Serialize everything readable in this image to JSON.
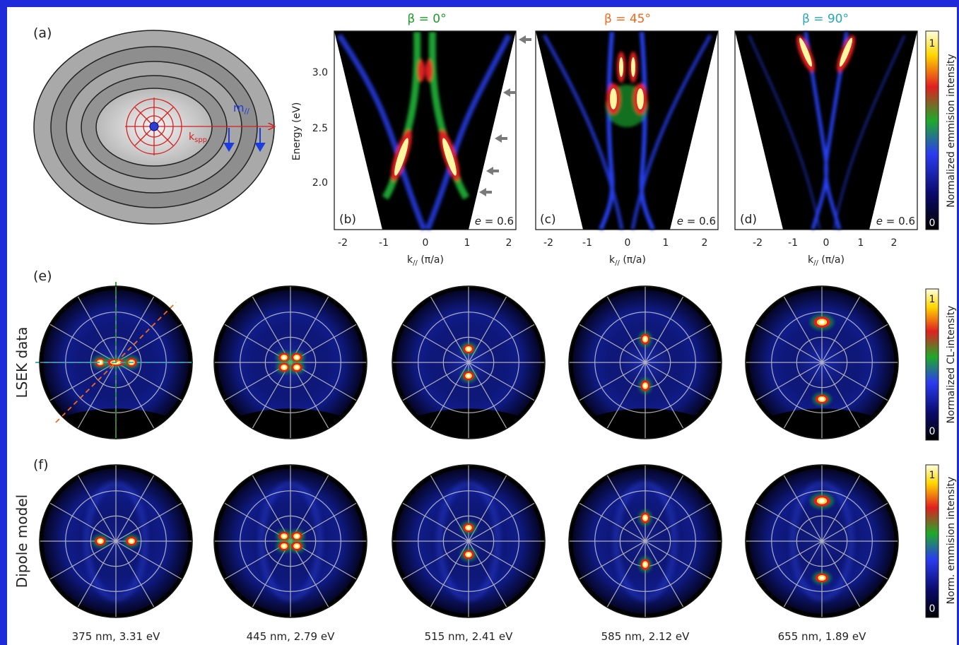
{
  "panel_a": {
    "label": "(a)",
    "k_label": "k",
    "k_sub": "spp",
    "m_label": "m",
    "m_sub": "//"
  },
  "dispersion": {
    "panels": [
      {
        "label": "(b)",
        "beta_title": "β = 0°",
        "beta_color": "#1e9a2a",
        "e_label": "e",
        "e_value": " = 0.6"
      },
      {
        "label": "(c)",
        "beta_title": "β = 45°",
        "beta_color": "#f06a1c",
        "e_label": "e",
        "e_value": " = 0.6"
      },
      {
        "label": "(d)",
        "beta_title": "β = 90°",
        "beta_color": "#2aa6b6",
        "e_label": "e",
        "e_value": " = 0.6"
      }
    ],
    "y_label": "Energy (eV)",
    "y_ticks": [
      "3.0",
      "2.5",
      "2.0"
    ],
    "x_ticks": [
      "-2",
      "-1",
      "0",
      "1",
      "2"
    ],
    "x_label_main": "k",
    "x_label_sub": "//",
    "x_label_unit": " (π/a)",
    "colorbar": {
      "label": "Normalized emmision intensity",
      "max": "1",
      "min": "0"
    }
  },
  "row_e": {
    "label": "(e)",
    "row_title": "LSEK data",
    "colorbar": {
      "label": "Normalized CL-intensity",
      "max": "1",
      "min": "0"
    }
  },
  "row_f": {
    "label": "(f)",
    "row_title": "Dipole model",
    "colorbar": {
      "label": "Norm. emmision intensity",
      "max": "1",
      "min": "0"
    }
  },
  "wavelengths": [
    "375 nm, 3.31 eV",
    "445 nm, 2.79 eV",
    "515 nm, 2.41 eV",
    "585 nm, 2.12 eV",
    "655 nm, 1.89 eV"
  ],
  "colors": {
    "frame": "#1f2bd8",
    "ring_red": "#d42020",
    "arrow_blue": "#1a3ce0",
    "arrow_gray": "#7a7a7a"
  }
}
